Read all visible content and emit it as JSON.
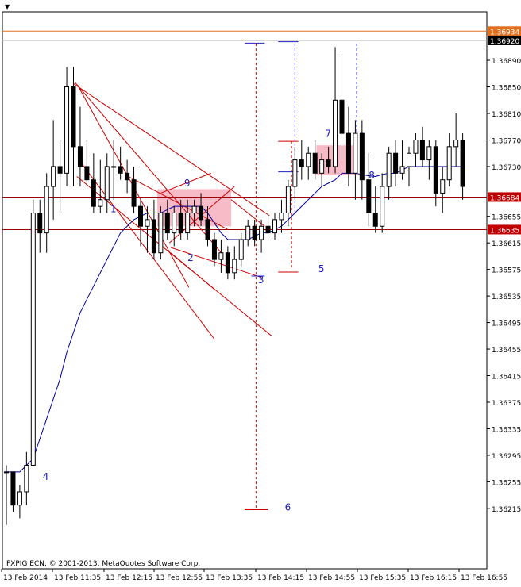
{
  "window": {
    "menu_arrow": "▼"
  },
  "watermark": "FXPIG ECN, © 2001-2013, MetaQuotes Software Corp.",
  "colors": {
    "background": "#ffffff",
    "frame": "#000000",
    "bull_body": "#ffffff",
    "bear_body": "#000000",
    "moving_average": "#0000a0",
    "trendline": "#cc0000",
    "hline_dark": "#a00000",
    "hline_orange": "#e07020",
    "zone_fill": "#f4aab8",
    "label_text": "#2020c0",
    "price_box": "#c00000",
    "price_box_current": "#000000"
  },
  "chart_data": {
    "type": "candlestick",
    "ylim": [
      1.36124,
      1.36963
    ],
    "y_ticks": [
      "1.36890",
      "1.36850",
      "1.36810",
      "1.36770",
      "1.36730",
      "1.36655",
      "1.36615",
      "1.36575",
      "1.36535",
      "1.36495",
      "1.36455",
      "1.36415",
      "1.36375",
      "1.36335",
      "1.36295",
      "1.36255",
      "1.36215"
    ],
    "x_ticks": [
      "13 Feb 2014",
      "13 Feb 11:35",
      "13 Feb 12:15",
      "13 Feb 12:55",
      "13 Feb 13:35",
      "13 Feb 14:15",
      "13 Feb 14:55",
      "13 Feb 15:35",
      "13 Feb 16:15",
      "13 Feb 16:55"
    ],
    "price_levels": [
      {
        "label": "1.36934",
        "value": 1.36934,
        "kind": "orange"
      },
      {
        "label": "1.36920",
        "value": 1.3692,
        "kind": "current"
      },
      {
        "label": "1.36684",
        "value": 1.36684,
        "kind": "red"
      },
      {
        "label": "1.36635",
        "value": 1.36635,
        "kind": "red"
      }
    ],
    "candles": [
      [
        1.3627,
        1.3628,
        1.3619,
        1.3627
      ],
      [
        1.3627,
        1.3627,
        1.3621,
        1.3622
      ],
      [
        1.3622,
        1.3625,
        1.362,
        1.3624
      ],
      [
        1.3624,
        1.363,
        1.3622,
        1.3628
      ],
      [
        1.3628,
        1.3668,
        1.3628,
        1.3666
      ],
      [
        1.3666,
        1.3668,
        1.366,
        1.3663
      ],
      [
        1.3663,
        1.3672,
        1.366,
        1.367
      ],
      [
        1.367,
        1.368,
        1.3665,
        1.3673
      ],
      [
        1.3673,
        1.3677,
        1.3666,
        1.3672
      ],
      [
        1.3672,
        1.3688,
        1.367,
        1.3685
      ],
      [
        1.3685,
        1.3688,
        1.367,
        1.3676
      ],
      [
        1.3676,
        1.3682,
        1.367,
        1.3673
      ],
      [
        1.3673,
        1.3677,
        1.367,
        1.3671
      ],
      [
        1.3671,
        1.3675,
        1.3666,
        1.3667
      ],
      [
        1.3667,
        1.3674,
        1.3666,
        1.3668
      ],
      [
        1.3668,
        1.3675,
        1.3666,
        1.3673
      ],
      [
        1.3673,
        1.3677,
        1.3668,
        1.3673
      ],
      [
        1.3673,
        1.3676,
        1.3671,
        1.3672
      ],
      [
        1.3672,
        1.3674,
        1.3669,
        1.3671
      ],
      [
        1.3671,
        1.3673,
        1.3666,
        1.3667
      ],
      [
        1.3667,
        1.3668,
        1.3661,
        1.3664
      ],
      [
        1.3664,
        1.3667,
        1.366,
        1.3665
      ],
      [
        1.3665,
        1.3668,
        1.3659,
        1.366
      ],
      [
        1.366,
        1.3667,
        1.3659,
        1.3666
      ],
      [
        1.3666,
        1.3668,
        1.3662,
        1.3663
      ],
      [
        1.3663,
        1.3667,
        1.3661,
        1.3666
      ],
      [
        1.3666,
        1.3668,
        1.3662,
        1.3663
      ],
      [
        1.3663,
        1.3668,
        1.3662,
        1.3666
      ],
      [
        1.3666,
        1.3668,
        1.3664,
        1.3667
      ],
      [
        1.3667,
        1.3669,
        1.3664,
        1.3665
      ],
      [
        1.3665,
        1.3667,
        1.3661,
        1.3662
      ],
      [
        1.3662,
        1.3663,
        1.3658,
        1.3659
      ],
      [
        1.3659,
        1.3662,
        1.3657,
        1.366
      ],
      [
        1.366,
        1.3661,
        1.3656,
        1.3657
      ],
      [
        1.3657,
        1.3661,
        1.3656,
        1.3659
      ],
      [
        1.3659,
        1.3663,
        1.3658,
        1.3662
      ],
      [
        1.3662,
        1.3665,
        1.3661,
        1.3664
      ],
      [
        1.3664,
        1.3665,
        1.3661,
        1.3662
      ],
      [
        1.3662,
        1.3665,
        1.366,
        1.3664
      ],
      [
        1.3664,
        1.3666,
        1.3662,
        1.3663
      ],
      [
        1.3663,
        1.3666,
        1.3662,
        1.3665
      ],
      [
        1.3665,
        1.3668,
        1.3663,
        1.3666
      ],
      [
        1.3666,
        1.3671,
        1.3664,
        1.367
      ],
      [
        1.367,
        1.3676,
        1.3668,
        1.3674
      ],
      [
        1.3674,
        1.3677,
        1.3671,
        1.3673
      ],
      [
        1.3673,
        1.3676,
        1.3671,
        1.3675
      ],
      [
        1.3675,
        1.3677,
        1.3671,
        1.3672
      ],
      [
        1.3672,
        1.3675,
        1.367,
        1.3674
      ],
      [
        1.3674,
        1.3676,
        1.3672,
        1.3673
      ],
      [
        1.3673,
        1.3691,
        1.3672,
        1.3683
      ],
      [
        1.3683,
        1.369,
        1.3674,
        1.3678
      ],
      [
        1.3678,
        1.3682,
        1.367,
        1.3672
      ],
      [
        1.3672,
        1.368,
        1.3668,
        1.3678
      ],
      [
        1.3678,
        1.368,
        1.3668,
        1.3671
      ],
      [
        1.3671,
        1.3675,
        1.3664,
        1.3666
      ],
      [
        1.3666,
        1.367,
        1.3663,
        1.3664
      ],
      [
        1.3664,
        1.3672,
        1.3663,
        1.367
      ],
      [
        1.367,
        1.3676,
        1.3668,
        1.3675
      ],
      [
        1.3675,
        1.3677,
        1.367,
        1.3672
      ],
      [
        1.3672,
        1.3677,
        1.3671,
        1.3673
      ],
      [
        1.3673,
        1.3676,
        1.367,
        1.3675
      ],
      [
        1.3675,
        1.3678,
        1.3673,
        1.3677
      ],
      [
        1.3677,
        1.3679,
        1.3673,
        1.3674
      ],
      [
        1.3674,
        1.3677,
        1.3671,
        1.3676
      ],
      [
        1.3676,
        1.3677,
        1.3667,
        1.3669
      ],
      [
        1.3669,
        1.3673,
        1.3666,
        1.3671
      ],
      [
        1.3671,
        1.3678,
        1.367,
        1.3676
      ],
      [
        1.3676,
        1.3681,
        1.3673,
        1.3677
      ],
      [
        1.3677,
        1.3678,
        1.3668,
        1.367
      ]
    ],
    "moving_average": [
      1.3627,
      1.3627,
      1.3627,
      1.3628,
      1.3629,
      1.3632,
      1.3635,
      1.3638,
      1.3641,
      1.3645,
      1.3648,
      1.3651,
      1.3653,
      1.3655,
      1.3657,
      1.3659,
      1.3661,
      1.3663,
      1.3664,
      1.3665,
      1.36655,
      1.3666,
      1.3666,
      1.3666,
      1.36665,
      1.3667,
      1.3667,
      1.3667,
      1.3667,
      1.3667,
      1.3666,
      1.36645,
      1.3663,
      1.3662,
      1.3662,
      1.3662,
      1.3662,
      1.36625,
      1.3663,
      1.3663,
      1.36635,
      1.3664,
      1.3665,
      1.3666,
      1.3667,
      1.3668,
      1.3669,
      1.367,
      1.36705,
      1.3671,
      1.3672,
      1.3672,
      1.3672,
      1.36718,
      1.36716,
      1.36715,
      1.36718,
      1.3672,
      1.3672,
      1.36725,
      1.3673,
      1.3673,
      1.3673,
      1.3673,
      1.3673,
      1.3673,
      1.3673,
      1.3673,
      1.3673
    ],
    "annotations": [
      {
        "text": "1",
        "near": "swing low",
        "i": 15.5,
        "p": 1.36661
      },
      {
        "text": "2",
        "near": "swing low",
        "i": 27,
        "p": 1.36588
      },
      {
        "text": "3",
        "near": "swing low",
        "i": 37.5,
        "p": 1.36554
      },
      {
        "text": "4",
        "near": "origin",
        "i": 5.4,
        "p": 1.36258
      },
      {
        "text": "5",
        "near": "target",
        "i": 46.5,
        "p": 1.36571
      },
      {
        "text": "6",
        "near": "target",
        "i": 41.5,
        "p": 1.36212
      },
      {
        "text": "7",
        "near": "zone",
        "i": 47.5,
        "p": 1.36775
      },
      {
        "text": "8",
        "near": "zone",
        "i": 54,
        "p": 1.36712
      },
      {
        "text": "9",
        "near": "zone",
        "i": 26.5,
        "p": 1.367
      }
    ]
  }
}
